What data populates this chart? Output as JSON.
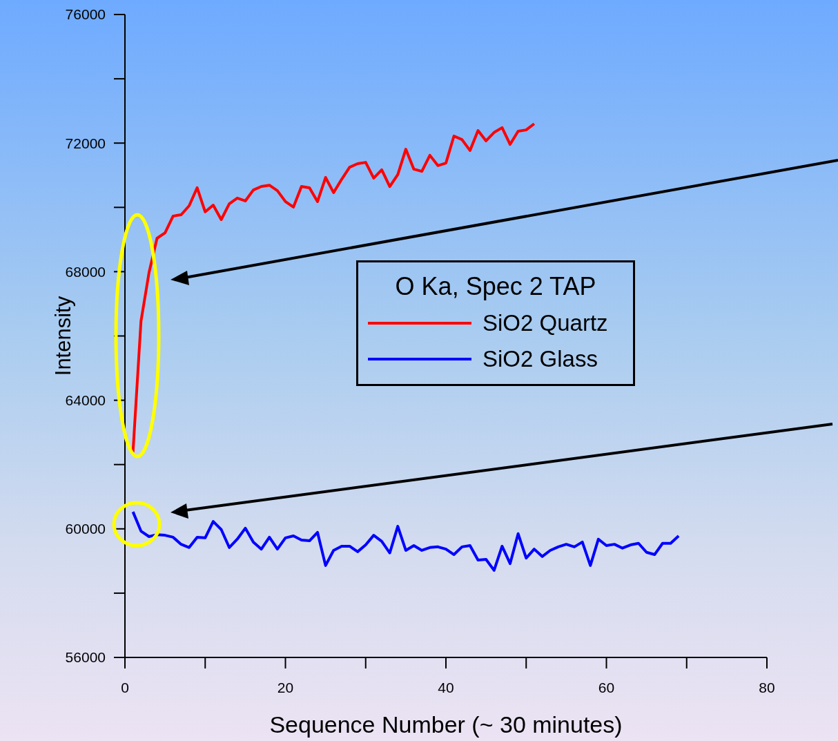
{
  "chart_data": {
    "type": "line",
    "xlabel": "Sequence Number (~ 30 minutes)",
    "ylabel": "Intensity",
    "legend_title": "O Ka, Spec 2 TAP",
    "legend": "right",
    "grid": false,
    "marker": "none",
    "line_style": "solid",
    "xlim": [
      0,
      80
    ],
    "xticks": [
      0,
      {
        "value": 10,
        "label": null
      },
      20,
      {
        "value": 30,
        "label": null
      },
      40,
      {
        "value": 50,
        "label": null
      },
      60,
      {
        "value": 70,
        "label": null
      },
      80
    ],
    "ylim": [
      56000,
      76000
    ],
    "yticks": [
      56000,
      {
        "value": 58000,
        "label": null
      },
      60000,
      {
        "value": 62000,
        "label": null
      },
      64000,
      {
        "value": 66000,
        "label": null
      },
      68000,
      {
        "value": 70000,
        "label": null
      },
      72000,
      {
        "value": 74000,
        "label": null
      },
      76000
    ],
    "series": [
      {
        "name": "SiO2 Quartz",
        "color": "#ff0000",
        "x": [
          1,
          2,
          3,
          4,
          5,
          6,
          7,
          8,
          9,
          10,
          11,
          12,
          13,
          14,
          15,
          16,
          17,
          18,
          19,
          20,
          21,
          22,
          23,
          24,
          25,
          26,
          27,
          28,
          29,
          30,
          31,
          32,
          33,
          34,
          35,
          36,
          37,
          38,
          39,
          40,
          41,
          42,
          43,
          44,
          45,
          46,
          47,
          48,
          49,
          50,
          51
        ],
        "values": [
          62380,
          66460,
          67970,
          69040,
          69210,
          69730,
          69770,
          70050,
          70610,
          69860,
          70070,
          69620,
          70110,
          70290,
          70200,
          70540,
          70650,
          70690,
          70520,
          70180,
          70010,
          70650,
          70610,
          70180,
          70930,
          70460,
          70870,
          71250,
          71360,
          71400,
          70910,
          71170,
          70650,
          71020,
          71810,
          71190,
          71120,
          71620,
          71300,
          71380,
          72220,
          72110,
          71770,
          72390,
          72070,
          72330,
          72480,
          71960,
          72370,
          72410,
          72600
        ]
      },
      {
        "name": "SiO2 Glass",
        "color": "#0000ff",
        "x": [
          1,
          2,
          3,
          4,
          5,
          6,
          7,
          8,
          9,
          10,
          11,
          12,
          13,
          14,
          15,
          16,
          17,
          18,
          19,
          20,
          21,
          22,
          23,
          24,
          25,
          26,
          27,
          28,
          29,
          30,
          31,
          32,
          33,
          34,
          35,
          36,
          37,
          38,
          39,
          40,
          41,
          42,
          43,
          44,
          45,
          46,
          47,
          48,
          49,
          50,
          51,
          52,
          53,
          54,
          55,
          56,
          57,
          58,
          59,
          60,
          61,
          62,
          63,
          64,
          65,
          66,
          67,
          68,
          69
        ],
        "values": [
          60530,
          59930,
          59760,
          59820,
          59800,
          59740,
          59520,
          59420,
          59740,
          59720,
          60230,
          59980,
          59420,
          59680,
          60020,
          59590,
          59370,
          59740,
          59370,
          59720,
          59780,
          59650,
          59630,
          59890,
          58860,
          59330,
          59460,
          59460,
          59290,
          59500,
          59800,
          59610,
          59250,
          60080,
          59330,
          59480,
          59330,
          59420,
          59440,
          59370,
          59200,
          59440,
          59480,
          59030,
          59050,
          58710,
          59460,
          58920,
          59850,
          59090,
          59370,
          59140,
          59330,
          59440,
          59520,
          59440,
          59590,
          58860,
          59680,
          59480,
          59520,
          59400,
          59500,
          59550,
          59270,
          59200,
          59550,
          59550,
          59780
        ]
      }
    ]
  }
}
